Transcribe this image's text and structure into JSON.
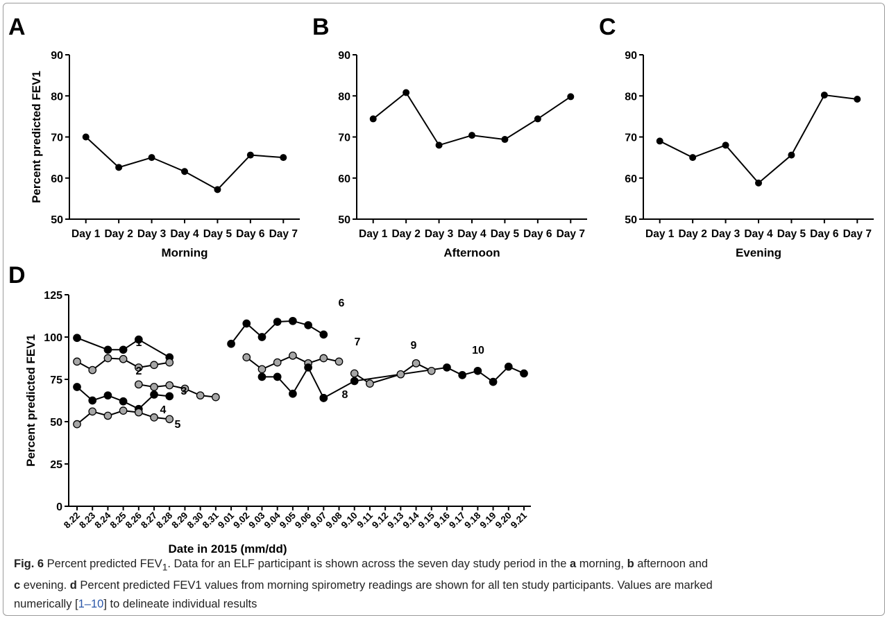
{
  "chart_data": [
    {
      "panel": "A",
      "type": "line",
      "categories": [
        "Day 1",
        "Day 2",
        "Day 3",
        "Day 4",
        "Day 5",
        "Day 6",
        "Day 7"
      ],
      "values": [
        70.0,
        62.6,
        65.0,
        61.6,
        57.2,
        65.6,
        65.0
      ],
      "xlabel": "Morning",
      "ylabel": "Percent predicted FEV1",
      "ylim": [
        50,
        90
      ],
      "yticks": [
        "50",
        "60",
        "70",
        "80",
        "90"
      ]
    },
    {
      "panel": "B",
      "type": "line",
      "categories": [
        "Day 1",
        "Day 2",
        "Day 3",
        "Day 4",
        "Day 5",
        "Day 6",
        "Day 7"
      ],
      "values": [
        74.4,
        80.8,
        68.0,
        70.4,
        69.4,
        74.4,
        79.8
      ],
      "xlabel": "Afternoon",
      "ylabel": "",
      "ylim": [
        50,
        90
      ],
      "yticks": [
        "50",
        "60",
        "70",
        "80",
        "90"
      ]
    },
    {
      "panel": "C",
      "type": "line",
      "categories": [
        "Day 1",
        "Day 2",
        "Day 3",
        "Day 4",
        "Day 5",
        "Day 6",
        "Day 7"
      ],
      "values": [
        69.0,
        65.0,
        68.0,
        58.8,
        65.6,
        80.2,
        79.2
      ],
      "xlabel": "Evening",
      "ylabel": "",
      "ylim": [
        50,
        90
      ],
      "yticks": [
        "50",
        "60",
        "70",
        "80",
        "90"
      ]
    },
    {
      "panel": "D",
      "type": "line",
      "categories": [
        "8.22",
        "8.23",
        "8.24",
        "8.25",
        "8.26",
        "8.27",
        "8.28",
        "8.29",
        "8.30",
        "8.31",
        "9.01",
        "9.02",
        "9.03",
        "9.04",
        "9.05",
        "9.06",
        "9.07",
        "9.08",
        "9.10",
        "9.11",
        "9.12",
        "9.13",
        "9.14",
        "9.15",
        "9.16",
        "9.17",
        "9.18",
        "9.19",
        "9.20",
        "9.21"
      ],
      "xlabel": "Date in 2015 (mm/dd)",
      "ylabel": "Percent predicted FEV1",
      "ylim": [
        0,
        125
      ],
      "yticks": [
        "0",
        "25",
        "50",
        "75",
        "100",
        "125"
      ],
      "series": [
        {
          "name": "1",
          "marker": "black",
          "x": [
            0,
            2,
            3,
            4,
            6
          ],
          "values": [
            99.5,
            92.5,
            92.5,
            98.5,
            88.0
          ]
        },
        {
          "name": "2",
          "marker": "grey",
          "x": [
            0,
            1,
            2,
            3,
            4,
            5,
            6
          ],
          "values": [
            85.5,
            80.5,
            87.5,
            87.0,
            82.0,
            83.5,
            85.0
          ]
        },
        {
          "name": "3",
          "marker": "grey",
          "x": [
            4,
            5,
            6,
            7,
            8,
            9
          ],
          "values": [
            72.0,
            70.5,
            71.5,
            69.5,
            65.5,
            64.5
          ]
        },
        {
          "name": "4",
          "marker": "black",
          "x": [
            0,
            1,
            2,
            3,
            4,
            5,
            6
          ],
          "values": [
            70.5,
            62.5,
            65.5,
            62.0,
            57.5,
            66.0,
            65.0
          ]
        },
        {
          "name": "5",
          "marker": "grey",
          "x": [
            0,
            1,
            2,
            3,
            4,
            5,
            6
          ],
          "values": [
            48.5,
            56.0,
            53.5,
            56.5,
            55.5,
            52.5,
            51.5
          ]
        },
        {
          "name": "6",
          "marker": "black",
          "x": [
            10,
            11,
            12,
            13,
            14,
            15,
            16
          ],
          "values": [
            96.0,
            108.0,
            100.0,
            109.0,
            109.5,
            107.0,
            101.5
          ]
        },
        {
          "name": "7",
          "marker": "grey",
          "x": [
            11,
            12,
            13,
            14,
            15,
            16,
            17
          ],
          "values": [
            88.0,
            81.0,
            85.0,
            89.0,
            84.5,
            87.5,
            85.5
          ]
        },
        {
          "name": "8",
          "marker": "black",
          "x": [
            12,
            13,
            14,
            15,
            16
          ],
          "values": [
            76.5,
            76.5,
            66.5,
            82.0,
            64.0
          ]
        },
        {
          "name": "9",
          "marker": "grey",
          "x": [
            18,
            19,
            21,
            22,
            23
          ],
          "values": [
            78.5,
            72.5,
            78.0,
            84.5,
            80.0
          ]
        },
        {
          "name": "10",
          "marker": "black",
          "x": [
            16,
            18,
            24,
            25,
            26,
            27,
            28,
            29
          ],
          "values": [
            64.0,
            74.0,
            82.0,
            77.5,
            80.0,
            73.5,
            82.5,
            78.5
          ]
        }
      ]
    }
  ],
  "panel_letters": {
    "a": "A",
    "b": "B",
    "c": "C",
    "d": "D"
  },
  "colors": {
    "line": "#000000",
    "black_marker": "#000000",
    "grey_marker": "#a6a6a6",
    "link": "#2a56a8"
  },
  "caption": {
    "fig_label": "Fig. 6",
    "line1_a": " Percent predicted FEV",
    "line1_sub": "1",
    "line1_b": ". Data for an ELF participant is shown across the seven day study period in the ",
    "line1_a_letter": "a",
    "line1_c": " morning, ",
    "line1_b_letter": "b",
    "line1_d": " afternoon and",
    "line2_c_letter": "c",
    "line2_a": " evening. ",
    "line2_d_letter": "d",
    "line2_b": " Percent predicted FEV1 values from morning spirometry readings are shown for all ten study participants. Values are marked",
    "line3_a": "numerically [",
    "line3_link": "1–10",
    "line3_b": "] to delineate individual results"
  }
}
